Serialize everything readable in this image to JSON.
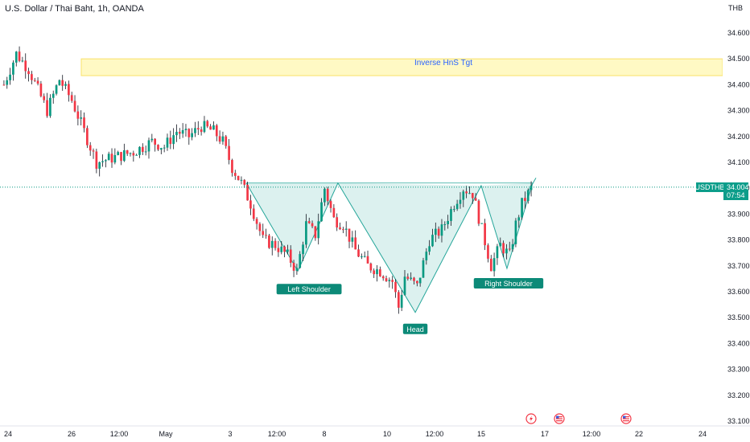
{
  "header": {
    "symbol_title": "U.S. Dollar / Thai Baht, 1h, OANDA"
  },
  "colors": {
    "up": "#089981",
    "down": "#f23645",
    "wick": "#131722",
    "pattern_fill": "#b2dfdb",
    "pattern_line": "#26a69a",
    "target_fill": "#fff9c4",
    "target_border": "#f9e26a",
    "price_tag": "#0c9d8a",
    "label_bg": "#0c8a78"
  },
  "chart_data": {
    "type": "candlestick",
    "symbol": "USDTHB",
    "interval": "1h",
    "source": "OANDA",
    "currency_label": "THB",
    "ylim": [
      33.08,
      34.68
    ],
    "y_ticks": [
      "34.600",
      "34.500",
      "34.400",
      "34.300",
      "34.200",
      "34.100",
      "34.000",
      "33.900",
      "33.800",
      "33.700",
      "33.600",
      "33.500",
      "33.400",
      "33.300",
      "33.200",
      "33.100"
    ],
    "x_ticks": [
      "24",
      "26",
      "12:00",
      "May",
      "3",
      "12:00",
      "8",
      "10",
      "12:00",
      "15",
      "17",
      "12:00",
      "22",
      "24"
    ],
    "last_price": {
      "symbol": "USDTHB",
      "value": "34.004",
      "countdown": "07:54"
    },
    "target_zone": {
      "label": "Inverse HnS Tgt",
      "top": 34.5,
      "bottom": 34.435
    },
    "pattern": {
      "type": "inverse head and shoulders",
      "labels": [
        "Left Shoulder",
        "Head",
        "Right Shoulder"
      ],
      "points": [
        {
          "x": 0.0,
          "y": 34.02
        },
        {
          "x": 0.18,
          "y": 33.68
        },
        {
          "x": 0.32,
          "y": 34.02
        },
        {
          "x": 0.59,
          "y": 33.52
        },
        {
          "x": 0.82,
          "y": 34.01
        },
        {
          "x": 0.91,
          "y": 33.69
        },
        {
          "x": 1.0,
          "y": 34.02
        }
      ],
      "breakout_line": 34.02
    },
    "price_path": [
      [
        0,
        34.4
      ],
      [
        4,
        34.52
      ],
      [
        8,
        34.46
      ],
      [
        14,
        34.3
      ],
      [
        18,
        34.42
      ],
      [
        22,
        34.34
      ],
      [
        26,
        34.22
      ],
      [
        30,
        34.1
      ],
      [
        36,
        34.12
      ],
      [
        42,
        34.14
      ],
      [
        48,
        34.18
      ],
      [
        52,
        34.16
      ],
      [
        56,
        34.22
      ],
      [
        60,
        34.2
      ],
      [
        64,
        34.24
      ],
      [
        68,
        34.22
      ],
      [
        71,
        34.18
      ],
      [
        74,
        34.08
      ],
      [
        77,
        34.02
      ],
      [
        80,
        33.94
      ],
      [
        84,
        33.8
      ],
      [
        88,
        33.78
      ],
      [
        92,
        33.74
      ],
      [
        95,
        33.68
      ],
      [
        98,
        33.86
      ],
      [
        101,
        33.82
      ],
      [
        104,
        34.0
      ],
      [
        107,
        33.88
      ],
      [
        110,
        33.86
      ],
      [
        114,
        33.76
      ],
      [
        118,
        33.7
      ],
      [
        122,
        33.68
      ],
      [
        126,
        33.64
      ],
      [
        128,
        33.54
      ],
      [
        130,
        33.66
      ],
      [
        134,
        33.62
      ],
      [
        138,
        33.8
      ],
      [
        142,
        33.84
      ],
      [
        146,
        33.94
      ],
      [
        149,
        34.0
      ],
      [
        152,
        33.98
      ],
      [
        155,
        33.84
      ],
      [
        158,
        33.7
      ],
      [
        161,
        33.78
      ],
      [
        164,
        33.74
      ],
      [
        166,
        33.86
      ],
      [
        168,
        33.94
      ],
      [
        171,
        34.0
      ]
    ]
  },
  "events": {
    "lightning_icon": "lightning-icon",
    "us_flags": [
      "us-flag-icon",
      "us-flag-icon"
    ]
  }
}
